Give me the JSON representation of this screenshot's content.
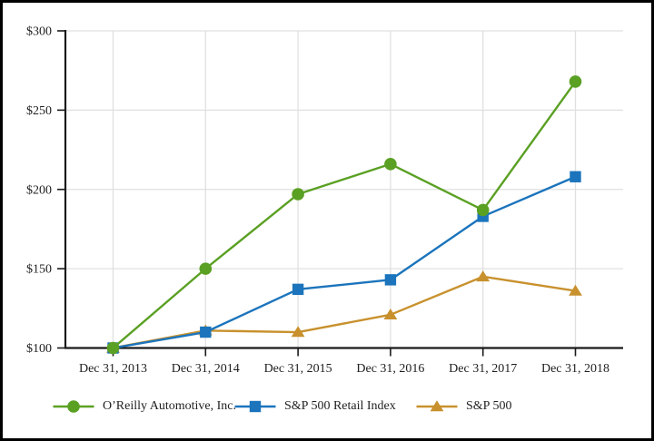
{
  "chart_data": {
    "type": "line",
    "title": "",
    "xlabel": "",
    "ylabel": "",
    "x_categories": [
      "Dec 31, 2013",
      "Dec 31, 2014",
      "Dec 31, 2015",
      "Dec 31, 2016",
      "Dec 31, 2017",
      "Dec 31, 2018"
    ],
    "y_axis": {
      "min": 100,
      "max": 300,
      "step": 50,
      "prefix": "$",
      "tick_labels": [
        "$100",
        "$150",
        "$200",
        "$250",
        "$300"
      ]
    },
    "ylim": [
      100,
      300
    ],
    "grid": true,
    "legend_position": "bottom",
    "series": [
      {
        "name": "O’Reilly Automotive, Inc.",
        "marker": "circle",
        "color": "#5aa023",
        "values": [
          100,
          150,
          197,
          216,
          187,
          268
        ]
      },
      {
        "name": "S&P 500 Retail Index",
        "marker": "square",
        "color": "#1b74bc",
        "values": [
          100,
          110,
          137,
          143,
          183,
          208
        ]
      },
      {
        "name": "S&P 500",
        "marker": "triangle",
        "color": "#c8912d",
        "values": [
          100,
          111,
          110,
          121,
          145,
          136
        ]
      }
    ]
  },
  "styles": {
    "background": "#ffffff",
    "border_color": "#000000",
    "axis_color": "#1a1a1a",
    "grid_color": "#e0e0e0",
    "text_color": "#1f1f1f"
  }
}
